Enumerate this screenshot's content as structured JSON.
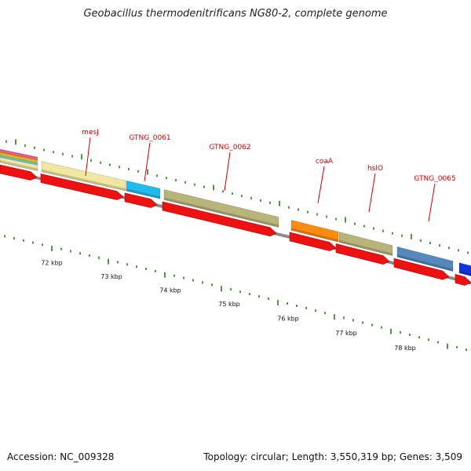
{
  "title": "Geobacillus thermodenitrificans NG80-2, complete genome",
  "footer": {
    "accession": "Accession: NC_009328",
    "summary": "Topology: circular; Length: 3,550,319 bp; Genes: 3,509"
  },
  "colors": {
    "gene_label": "#cc0000",
    "cds_arrow": "#ee1111",
    "backbone": "#8a8a8a",
    "tick": "#2a7a1a"
  },
  "kbp_labels": [
    "72 kbp",
    "73 kbp",
    "74 kbp",
    "75 kbp",
    "76 kbp",
    "77 kbp",
    "78 kbp"
  ],
  "genes": [
    {
      "label": "",
      "color": "#f0e8a0"
    },
    {
      "label": "mesJ",
      "color": "#f0e8a0"
    },
    {
      "label": "GTNG_0061",
      "color": "#22bbee"
    },
    {
      "label": "GTNG_0062",
      "color": "#b8b47a"
    },
    {
      "label": "coaA",
      "color": "#ff8c10"
    },
    {
      "label": "hslO",
      "color": "#b8b47a"
    },
    {
      "label": "GTNG_0065",
      "color": "#5588bb"
    },
    {
      "label": "",
      "color": "#1133dd"
    }
  ]
}
